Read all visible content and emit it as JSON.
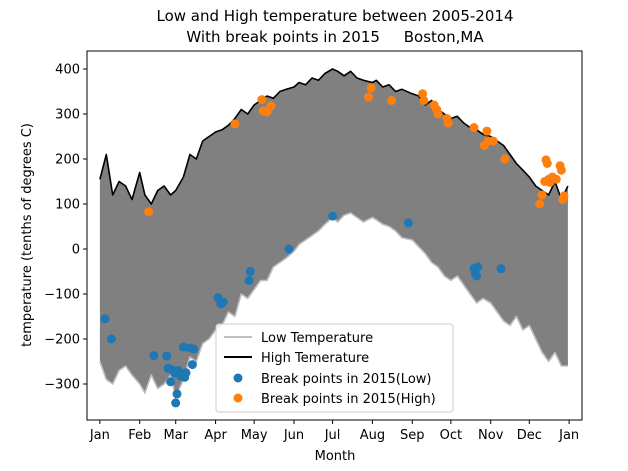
{
  "chart_data": {
    "type": "line",
    "title_line1": "Low and High temperature between 2005-2014",
    "title_line2": "With break points in 2015     Boston,MA",
    "xlabel": "Month",
    "ylabel": "temperature (tenths of degrees C)",
    "ylim": [
      -380,
      440
    ],
    "xlim": [
      -10,
      375
    ],
    "yticks": [
      -300,
      -200,
      -100,
      0,
      100,
      200,
      300,
      400
    ],
    "months": [
      {
        "label": "Jan",
        "day": 0
      },
      {
        "label": "Feb",
        "day": 31
      },
      {
        "label": "Mar",
        "day": 59
      },
      {
        "label": "Apr",
        "day": 90
      },
      {
        "label": "May",
        "day": 120
      },
      {
        "label": "Jun",
        "day": 151
      },
      {
        "label": "Jul",
        "day": 181
      },
      {
        "label": "Aug",
        "day": 212
      },
      {
        "label": "Sep",
        "day": 243
      },
      {
        "label": "Oct",
        "day": 273
      },
      {
        "label": "Nov",
        "day": 304
      },
      {
        "label": "Dec",
        "day": 334
      },
      {
        "label": "Jan",
        "day": 365
      }
    ],
    "series": [
      {
        "name": "Low Temperature",
        "color": "#bfbfbf",
        "x": [
          0,
          5,
          10,
          15,
          20,
          25,
          31,
          35,
          40,
          45,
          50,
          55,
          59,
          65,
          70,
          75,
          80,
          85,
          90,
          95,
          100,
          105,
          110,
          115,
          120,
          125,
          130,
          135,
          140,
          145,
          151,
          155,
          160,
          165,
          170,
          175,
          181,
          185,
          190,
          195,
          200,
          205,
          212,
          215,
          220,
          225,
          230,
          235,
          243,
          248,
          253,
          258,
          263,
          268,
          273,
          278,
          283,
          288,
          293,
          298,
          304,
          309,
          314,
          319,
          324,
          329,
          334,
          339,
          344,
          349,
          354,
          359,
          364
        ],
        "values": [
          -250,
          -290,
          -300,
          -270,
          -260,
          -280,
          -300,
          -320,
          -280,
          -310,
          -300,
          -280,
          -330,
          -290,
          -240,
          -250,
          -210,
          -200,
          -180,
          -170,
          -140,
          -150,
          -100,
          -110,
          -90,
          -70,
          -70,
          -40,
          -30,
          -20,
          -5,
          10,
          20,
          30,
          40,
          55,
          70,
          60,
          75,
          80,
          70,
          60,
          70,
          65,
          55,
          50,
          40,
          25,
          20,
          5,
          -10,
          -30,
          -40,
          -60,
          -70,
          -60,
          -80,
          -100,
          -120,
          -110,
          -120,
          -140,
          -160,
          -170,
          -150,
          -180,
          -170,
          -200,
          -230,
          -250,
          -230,
          -260,
          -260
        ]
      },
      {
        "name": "High Temerature",
        "color": "#000000",
        "x": [
          0,
          5,
          10,
          15,
          20,
          25,
          31,
          35,
          40,
          45,
          50,
          55,
          59,
          65,
          70,
          75,
          80,
          85,
          90,
          95,
          100,
          105,
          110,
          115,
          120,
          125,
          130,
          135,
          140,
          145,
          151,
          155,
          160,
          165,
          170,
          175,
          181,
          185,
          190,
          195,
          200,
          205,
          212,
          215,
          220,
          225,
          230,
          235,
          243,
          248,
          253,
          258,
          263,
          268,
          273,
          278,
          283,
          288,
          293,
          298,
          304,
          309,
          314,
          319,
          324,
          329,
          334,
          339,
          344,
          349,
          354,
          359,
          364
        ],
        "values": [
          155,
          210,
          120,
          150,
          140,
          110,
          170,
          120,
          100,
          130,
          140,
          120,
          130,
          160,
          210,
          200,
          240,
          250,
          260,
          265,
          275,
          290,
          310,
          300,
          320,
          330,
          340,
          335,
          350,
          355,
          360,
          370,
          365,
          380,
          375,
          390,
          400,
          395,
          385,
          395,
          380,
          375,
          370,
          375,
          360,
          365,
          350,
          355,
          345,
          340,
          320,
          330,
          310,
          300,
          290,
          295,
          280,
          270,
          265,
          255,
          250,
          240,
          230,
          210,
          190,
          175,
          160,
          140,
          130,
          120,
          150,
          110,
          140
        ]
      }
    ],
    "scatter": [
      {
        "name": "Break points in 2015(Low)",
        "color": "#1f77b4",
        "points": [
          [
            4,
            -155
          ],
          [
            9,
            -200
          ],
          [
            42,
            -237
          ],
          [
            52,
            -238
          ],
          [
            53,
            -265
          ],
          [
            55,
            -295
          ],
          [
            56,
            -268
          ],
          [
            58,
            -275
          ],
          [
            59,
            -342
          ],
          [
            60,
            -322
          ],
          [
            61,
            -270
          ],
          [
            63,
            -283
          ],
          [
            65,
            -218
          ],
          [
            66,
            -285
          ],
          [
            67,
            -275
          ],
          [
            70,
            -220
          ],
          [
            72,
            -257
          ],
          [
            73,
            -222
          ],
          [
            92,
            -108
          ],
          [
            94,
            -122
          ],
          [
            96,
            -118
          ],
          [
            116,
            -70
          ],
          [
            117,
            -50
          ],
          [
            147,
            0
          ],
          [
            181,
            73
          ],
          [
            240,
            58
          ],
          [
            291,
            -43
          ],
          [
            292,
            -55
          ],
          [
            293,
            -60
          ],
          [
            294,
            -40
          ],
          [
            312,
            -44
          ]
        ]
      },
      {
        "name": "Break points in 2015(High)",
        "color": "#ff7f0e",
        "points": [
          [
            38,
            83
          ],
          [
            105,
            278
          ],
          [
            126,
            332
          ],
          [
            127,
            307
          ],
          [
            130,
            305
          ],
          [
            133,
            318
          ],
          [
            209,
            338
          ],
          [
            211,
            358
          ],
          [
            227,
            330
          ],
          [
            251,
            345
          ],
          [
            252,
            330
          ],
          [
            260,
            320
          ],
          [
            262,
            310
          ],
          [
            263,
            300
          ],
          [
            270,
            290
          ],
          [
            271,
            280
          ],
          [
            291,
            270
          ],
          [
            299,
            230
          ],
          [
            301,
            262
          ],
          [
            302,
            240
          ],
          [
            306,
            240
          ],
          [
            315,
            200
          ],
          [
            342,
            100
          ],
          [
            344,
            120
          ],
          [
            346,
            150
          ],
          [
            347,
            198
          ],
          [
            348,
            190
          ],
          [
            349,
            155
          ],
          [
            350,
            148
          ],
          [
            352,
            160
          ],
          [
            355,
            155
          ],
          [
            358,
            185
          ],
          [
            359,
            175
          ],
          [
            360,
            110
          ],
          [
            361,
            118
          ]
        ]
      }
    ],
    "legend_placement": "lower-center",
    "fill_between_color": "#808080",
    "grid": false
  }
}
